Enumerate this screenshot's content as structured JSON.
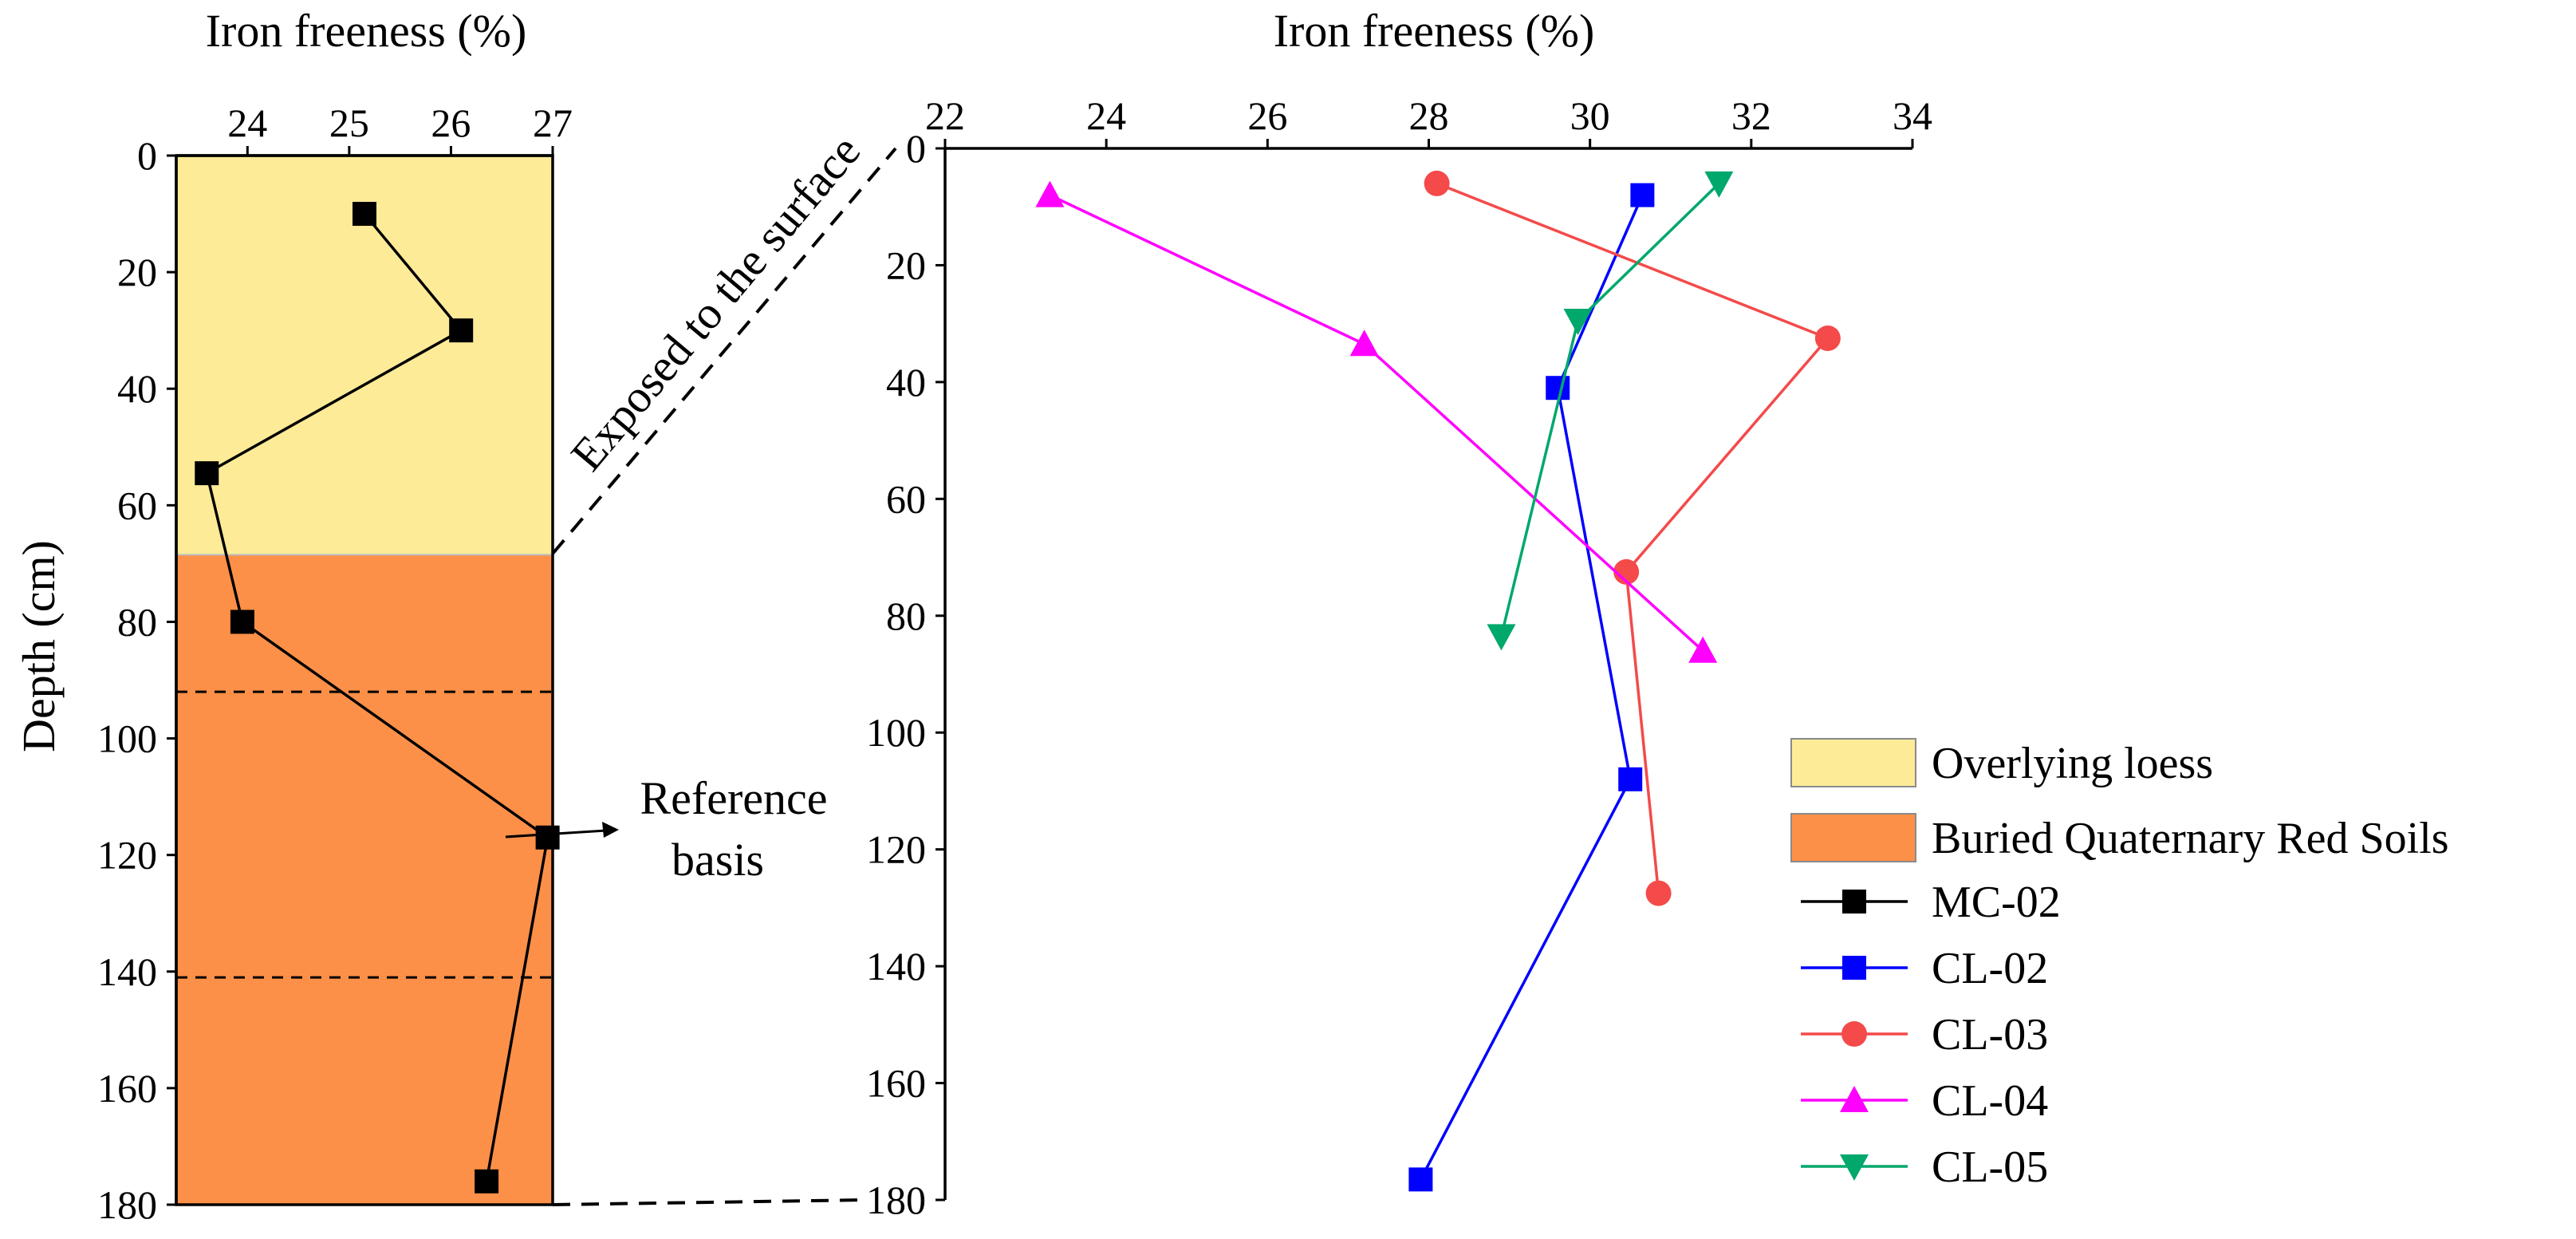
{
  "chart_data": [
    {
      "id": "left",
      "type": "line",
      "title": "Iron freeness (%)",
      "xlabel": "Iron freeness (%)",
      "ylabel": "Depth (cm)",
      "xlim": [
        23.3,
        27
      ],
      "ylim": [
        0,
        180
      ],
      "x_ticks": [
        24,
        25,
        26,
        27
      ],
      "y_ticks": [
        0,
        20,
        40,
        60,
        80,
        100,
        120,
        140,
        160,
        180
      ],
      "zones": [
        {
          "name": "Overlying loess",
          "from": 0,
          "to": 68.5,
          "color": "#fdeb98"
        },
        {
          "name": "Buried Quaternary Red Soils",
          "from": 68.5,
          "to": 180,
          "color": "#fd9048"
        }
      ],
      "zone_lines": [
        92,
        141
      ],
      "series": [
        {
          "name": "MC-02",
          "color": "#000000",
          "marker": "square",
          "points": [
            [
              25.15,
              10
            ],
            [
              26.1,
              30
            ],
            [
              23.6,
              54.5
            ],
            [
              23.95,
              80
            ],
            [
              26.95,
              117
            ],
            [
              26.35,
              176
            ]
          ]
        }
      ]
    },
    {
      "id": "right",
      "type": "line",
      "title": "Iron freeness (%)",
      "xlabel": "Iron freeness (%)",
      "ylabel": "",
      "xlim": [
        22,
        34
      ],
      "ylim": [
        0,
        180
      ],
      "x_ticks": [
        22,
        24,
        26,
        28,
        30,
        32,
        34
      ],
      "y_ticks": [
        0,
        20,
        40,
        60,
        80,
        100,
        120,
        140,
        160,
        180
      ],
      "series": [
        {
          "name": "CL-02",
          "color": "#0000ff",
          "marker": "square",
          "points": [
            [
              30.65,
              8
            ],
            [
              29.6,
              41
            ],
            [
              30.5,
              108
            ],
            [
              27.9,
              176.5
            ]
          ]
        },
        {
          "name": "CL-03",
          "color": "#f44a4a",
          "marker": "circle",
          "points": [
            [
              28.1,
              6
            ],
            [
              32.95,
              32.5
            ],
            [
              30.45,
              72.5
            ],
            [
              30.85,
              127.5
            ]
          ]
        },
        {
          "name": "CL-04",
          "color": "#ff00ff",
          "marker": "triangle-up",
          "points": [
            [
              23.3,
              8
            ],
            [
              27.2,
              33.5
            ],
            [
              31.4,
              86
            ]
          ]
        },
        {
          "name": "CL-05",
          "color": "#00a86b",
          "marker": "triangle-down",
          "points": [
            [
              31.6,
              6
            ],
            [
              29.85,
              29.5
            ],
            [
              28.9,
              83.5
            ]
          ]
        }
      ]
    }
  ],
  "annotations": {
    "surface": "Exposed to the surface",
    "reference_line1": "Reference",
    "reference_line2": "basis"
  },
  "legend": {
    "patches": [
      {
        "label": "Overlying loess",
        "color": "#fdeb98"
      },
      {
        "label": "Buried Quaternary Red Soils",
        "color": "#fd9048"
      }
    ],
    "lines": [
      {
        "label": "MC-02",
        "color": "#000000",
        "marker": "square"
      },
      {
        "label": "CL-02",
        "color": "#0000ff",
        "marker": "square"
      },
      {
        "label": "CL-03",
        "color": "#f44a4a",
        "marker": "circle"
      },
      {
        "label": "CL-04",
        "color": "#ff00ff",
        "marker": "triangle-up"
      },
      {
        "label": "CL-05",
        "color": "#00a86b",
        "marker": "triangle-down"
      }
    ]
  }
}
